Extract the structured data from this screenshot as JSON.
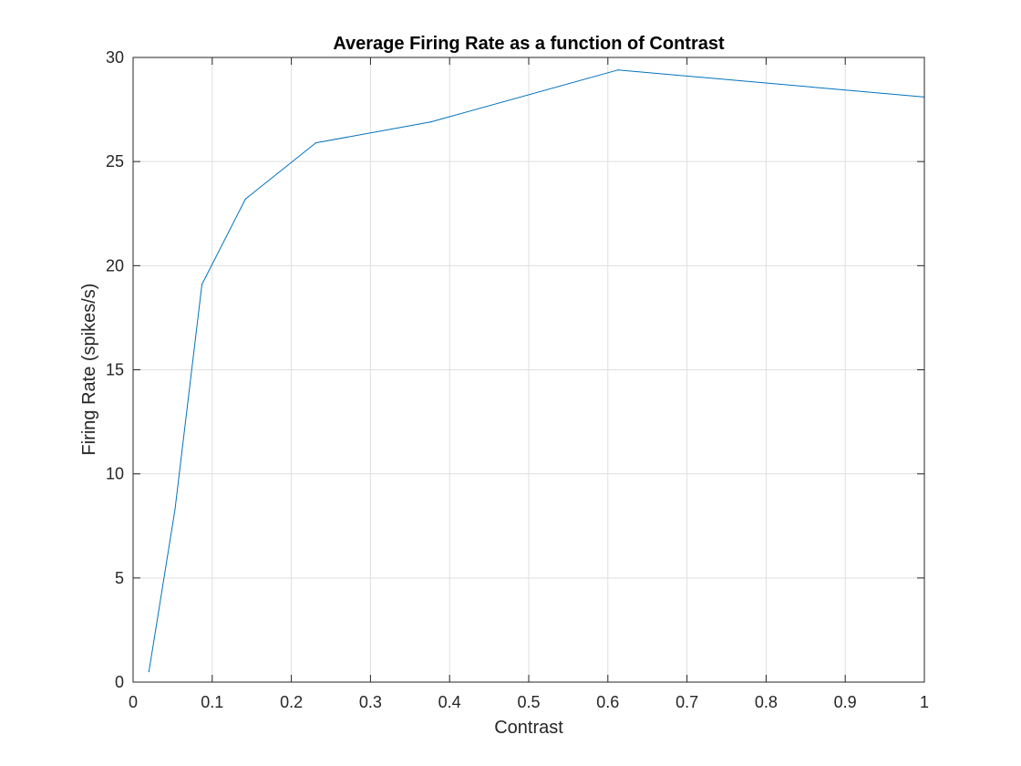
{
  "chart_data": {
    "type": "line",
    "title": "Average Firing Rate as a function of Contrast",
    "xlabel": "Contrast",
    "ylabel": "Firing Rate (spikes/s)",
    "xlim": [
      0,
      1
    ],
    "ylim": [
      0,
      30
    ],
    "xticks": [
      0,
      0.1,
      0.2,
      0.3,
      0.4,
      0.5,
      0.6,
      0.7,
      0.8,
      0.9,
      1
    ],
    "xtick_labels": [
      "0",
      "0.1",
      "0.2",
      "0.3",
      "0.4",
      "0.5",
      "0.6",
      "0.7",
      "0.8",
      "0.9",
      "1"
    ],
    "yticks": [
      0,
      5,
      10,
      15,
      20,
      25,
      30
    ],
    "ytick_labels": [
      "0",
      "5",
      "10",
      "15",
      "20",
      "25",
      "30"
    ],
    "grid": true,
    "series": [
      {
        "color": "#0072BD",
        "x": [
          0.02,
          0.053,
          0.087,
          0.142,
          0.231,
          0.376,
          0.613,
          1.0
        ],
        "y": [
          0.5,
          8.3,
          19.1,
          23.2,
          25.9,
          26.9,
          29.4,
          28.1
        ]
      }
    ]
  }
}
